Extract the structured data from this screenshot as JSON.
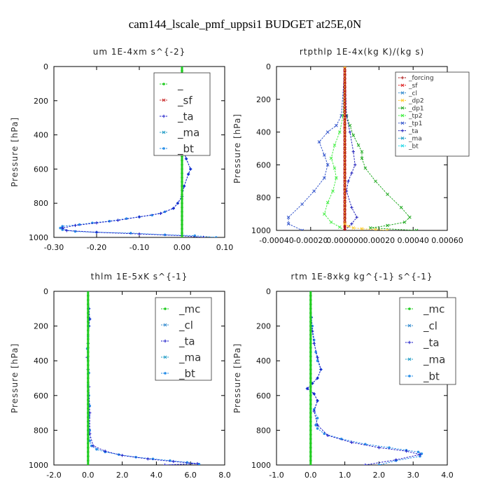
{
  "figure_title": "cam144_lscale_pmf_uppsi1  BUDGET at25E,0N",
  "chart_data": [
    {
      "type": "line",
      "title": "um  1E-4xm s^{-2}",
      "ylabel": "Pressure [hPa]",
      "xlim": [
        -0.3,
        0.1
      ],
      "ylim": [
        0,
        1000
      ],
      "y_inverted": true,
      "xticks": [
        "-0.30",
        "-0.20",
        "-0.10",
        "0.00",
        "0.10"
      ],
      "yticks": [
        "0",
        "200",
        "400",
        "600",
        "800",
        "1000"
      ],
      "legend": {
        "position": "upper-right",
        "labels": [
          "_",
          "_sf",
          "_ta",
          "_ma",
          "_bt"
        ]
      },
      "series": [
        {
          "name": "_bt",
          "color": "#2a8fe8",
          "marker": "dot",
          "x": [
            0.0,
            0.0,
            0.0,
            0.005,
            0.01,
            0.02,
            0.03,
            0.045,
            0.04,
            0.03,
            0.02,
            0.01,
            0.0,
            -0.005,
            0.0,
            0.01,
            0.02,
            0.015,
            0.005,
            0.0,
            -0.01,
            -0.02,
            -0.04,
            -0.07,
            -0.1,
            -0.13,
            -0.17,
            -0.21,
            -0.24,
            -0.28,
            -0.285,
            -0.28,
            -0.25,
            -0.2,
            -0.12,
            -0.04,
            0.03,
            0.08
          ],
          "y": [
            0,
            60,
            90,
            110,
            120,
            130,
            135,
            150,
            175,
            200,
            230,
            260,
            300,
            400,
            470,
            540,
            600,
            630,
            700,
            760,
            800,
            830,
            850,
            870,
            880,
            890,
            905,
            915,
            925,
            935,
            945,
            955,
            965,
            970,
            975,
            985,
            990,
            1000
          ]
        },
        {
          "name": "_ta",
          "color": "#1818c8",
          "marker": "plus",
          "x": [
            0.0,
            0.0,
            0.005,
            0.01,
            0.02,
            0.03,
            0.04,
            0.035,
            0.02,
            0.01,
            0.0,
            -0.005,
            0.0,
            0.01,
            0.02,
            0.015,
            0.005,
            0.0,
            -0.01,
            -0.02,
            -0.05,
            -0.1,
            -0.15,
            -0.2,
            -0.25,
            -0.28,
            -0.27,
            -0.2,
            -0.1,
            0.0,
            0.05
          ],
          "y": [
            0,
            80,
            110,
            120,
            130,
            140,
            150,
            175,
            200,
            230,
            300,
            400,
            470,
            540,
            600,
            630,
            700,
            760,
            800,
            830,
            860,
            880,
            900,
            915,
            930,
            945,
            960,
            970,
            980,
            990,
            1000
          ]
        },
        {
          "name": "_",
          "color": "#22cc22",
          "marker": "dot",
          "x": [
            0.0,
            0.0,
            0.0,
            0.0,
            0.0,
            0.0,
            0.0,
            0.0,
            0.0,
            0.0,
            0.0
          ],
          "y": [
            0,
            100,
            200,
            300,
            400,
            500,
            600,
            700,
            800,
            900,
            1000
          ]
        }
      ]
    },
    {
      "type": "line",
      "title": "rtpthlp  1E-4x(kg K)/(kg s)",
      "ylabel": "Pressure [hPa]",
      "xlim": [
        -0.0004,
        0.0006
      ],
      "ylim": [
        0,
        1000
      ],
      "y_inverted": true,
      "xticks": [
        "-0.00040",
        "-0.00020",
        "0.000000",
        "0.00020",
        "0.00040",
        "0.00060"
      ],
      "yticks": [
        "0",
        "200",
        "400",
        "600",
        "800",
        "1000"
      ],
      "legend": {
        "position": "upper-right",
        "labels": [
          "_forcing",
          "_sf",
          "_cl",
          "_dp2",
          "_dp1",
          "_tp2",
          "_tp1",
          "_ta",
          "_ma",
          "_bt"
        ]
      },
      "series": [
        {
          "name": "_dp1",
          "color": "#22aa22",
          "marker": "x",
          "x": [
            0.0,
            0.0,
            1e-05,
            3e-05,
            5e-05,
            8e-05,
            0.0001,
            0.0001,
            0.00012,
            0.00018,
            0.00025,
            0.00033,
            0.00038,
            0.00035,
            0.00025,
            0.00015,
            0.00042
          ],
          "y": [
            0,
            200,
            300,
            360,
            420,
            480,
            520,
            560,
            620,
            700,
            780,
            860,
            920,
            950,
            970,
            985,
            1000
          ]
        },
        {
          "name": "_tp1",
          "color": "#3355cc",
          "marker": "x",
          "x": [
            0.0,
            -2e-05,
            -5e-05,
            -0.0001,
            -0.00015,
            -0.00012,
            -0.0001,
            -0.00012,
            -0.00018,
            -0.00025,
            -0.00033,
            -0.00033,
            -0.00025
          ],
          "y": [
            0,
            300,
            360,
            400,
            460,
            540,
            600,
            680,
            760,
            840,
            920,
            960,
            1000
          ]
        },
        {
          "name": "_tp2",
          "color": "#44ee44",
          "marker": "x",
          "x": [
            0.0,
            -1e-05,
            -3e-05,
            -6e-05,
            -8e-05,
            -6e-05,
            -5e-05,
            -7e-05,
            -0.0001,
            -0.00012,
            -8e-05,
            -3e-05,
            0.0
          ],
          "y": [
            0,
            300,
            400,
            480,
            560,
            620,
            680,
            760,
            830,
            900,
            950,
            980,
            1000
          ]
        },
        {
          "name": "_ta",
          "color": "#2020bb",
          "marker": "plus",
          "x": [
            0.0,
            1e-05,
            3e-05,
            5e-05,
            6e-05,
            4e-05,
            2e-05,
            1e-05,
            4e-05,
            7e-05,
            4e-05,
            0.0
          ],
          "y": [
            0,
            300,
            400,
            520,
            600,
            650,
            700,
            760,
            860,
            920,
            960,
            1000
          ]
        },
        {
          "name": "_sf",
          "color": "#dd2222",
          "marker": "x",
          "x": [
            0.0,
            0.0,
            0.0,
            0.0,
            0.0,
            0.0,
            0.0,
            0.0,
            0.0,
            0.0,
            0.0
          ],
          "y": [
            0,
            100,
            200,
            300,
            400,
            500,
            600,
            700,
            800,
            900,
            1000
          ]
        },
        {
          "name": "_forcing",
          "color": "#aa1111",
          "marker": "plus",
          "x": [
            0.0,
            0.0,
            0.0,
            0.0,
            0.0,
            0.0,
            0.0,
            0.0,
            0.0,
            0.0,
            0.0
          ],
          "y": [
            0,
            100,
            200,
            300,
            400,
            500,
            600,
            700,
            800,
            900,
            1000
          ]
        },
        {
          "name": "_dp2",
          "color": "#ffcc33",
          "marker": "x",
          "x": [
            0.0,
            0.0,
            2e-05,
            5e-05,
            0.0001,
            0.00018,
            0.00025
          ],
          "y": [
            0,
            960,
            975,
            985,
            990,
            995,
            1000
          ]
        }
      ]
    },
    {
      "type": "line",
      "title": "thlm  1E-5xK s^{-1}",
      "ylabel": "Pressure [hPa]",
      "xlim": [
        -2.0,
        8.0
      ],
      "ylim": [
        0,
        1000
      ],
      "y_inverted": true,
      "xticks": [
        "-2.0",
        "0.0",
        "2.0",
        "4.0",
        "6.0",
        "8.0"
      ],
      "yticks": [
        "0",
        "200",
        "400",
        "600",
        "800",
        "1000"
      ],
      "legend": {
        "position": "upper-right",
        "labels": [
          "_mc",
          "_cl",
          "_ta",
          "_ma",
          "_bt"
        ]
      },
      "series": [
        {
          "name": "_bt",
          "color": "#2a8fe8",
          "marker": "dot",
          "x": [
            0.0,
            0.05,
            0.1,
            0.05,
            0.0,
            -0.05,
            0.0,
            0.05,
            0.0,
            0.05,
            0.1,
            0.05,
            0.1,
            0.1,
            0.2,
            0.5,
            1.0,
            1.8,
            2.8,
            3.8,
            4.8,
            5.8,
            6.5
          ],
          "y": [
            0,
            100,
            160,
            200,
            260,
            330,
            400,
            470,
            540,
            600,
            660,
            720,
            800,
            860,
            890,
            910,
            925,
            940,
            955,
            965,
            975,
            985,
            995
          ]
        },
        {
          "name": "_ta",
          "color": "#1818c8",
          "marker": "plus",
          "x": [
            0.0,
            0.05,
            0.1,
            0.05,
            0.0,
            -0.05,
            0.0,
            0.05,
            0.1,
            0.1,
            0.3,
            1.0,
            2.0,
            3.5,
            5.0,
            6.4,
            4.5
          ],
          "y": [
            0,
            100,
            160,
            200,
            300,
            380,
            450,
            550,
            700,
            820,
            890,
            920,
            945,
            965,
            980,
            992,
            1000
          ]
        },
        {
          "name": "_mc",
          "color": "#22cc22",
          "marker": "dot",
          "x": [
            0.0,
            0.0,
            0.0,
            0.0,
            0.0,
            0.0,
            0.0,
            0.0,
            0.0,
            0.0,
            0.0
          ],
          "y": [
            0,
            100,
            200,
            300,
            400,
            500,
            600,
            700,
            800,
            900,
            1000
          ]
        }
      ]
    },
    {
      "type": "line",
      "title": "rtm  1E-8xkg kg^{-1} s^{-1}",
      "ylabel": "Pressure [hPa]",
      "xlim": [
        -1.0,
        4.0
      ],
      "ylim": [
        0,
        1000
      ],
      "y_inverted": true,
      "xticks": [
        "-1.0",
        "0.0",
        "1.0",
        "2.0",
        "3.0",
        "4.0"
      ],
      "yticks": [
        "0",
        "200",
        "400",
        "600",
        "800",
        "1000"
      ],
      "legend": {
        "position": "upper-right",
        "labels": [
          "_mc",
          "_cl",
          "_ta",
          "_ma",
          "_bt"
        ]
      },
      "series": [
        {
          "name": "_bt",
          "color": "#2a8fe8",
          "marker": "dot",
          "x": [
            0.0,
            0.02,
            0.05,
            0.1,
            0.15,
            0.2,
            0.3,
            0.2,
            0.05,
            -0.1,
            0.1,
            0.2,
            0.1,
            0.2,
            0.15,
            0.2,
            0.4,
            0.9,
            1.6,
            2.3,
            2.8,
            3.15,
            3.25,
            3.2,
            2.5,
            2.0
          ],
          "y": [
            0,
            150,
            200,
            280,
            350,
            400,
            450,
            500,
            530,
            560,
            590,
            630,
            680,
            730,
            770,
            790,
            820,
            850,
            880,
            900,
            915,
            925,
            935,
            950,
            975,
            1000
          ]
        },
        {
          "name": "_ta",
          "color": "#1818c8",
          "marker": "plus",
          "x": [
            0.0,
            0.02,
            0.05,
            0.1,
            0.2,
            0.3,
            0.2,
            0.05,
            -0.1,
            0.1,
            0.2,
            0.1,
            0.2,
            0.5,
            1.2,
            2.0,
            2.8,
            3.2,
            2.5,
            1.6
          ],
          "y": [
            0,
            150,
            230,
            300,
            380,
            450,
            500,
            530,
            560,
            590,
            630,
            690,
            770,
            830,
            870,
            900,
            920,
            940,
            970,
            1000
          ]
        },
        {
          "name": "_mc",
          "color": "#22cc22",
          "marker": "dot",
          "x": [
            0.0,
            0.0,
            0.0,
            0.0,
            0.0,
            0.0,
            0.0,
            0.0,
            0.0,
            0.0,
            0.0
          ],
          "y": [
            0,
            100,
            200,
            300,
            400,
            500,
            600,
            700,
            800,
            900,
            1000
          ]
        }
      ]
    }
  ]
}
